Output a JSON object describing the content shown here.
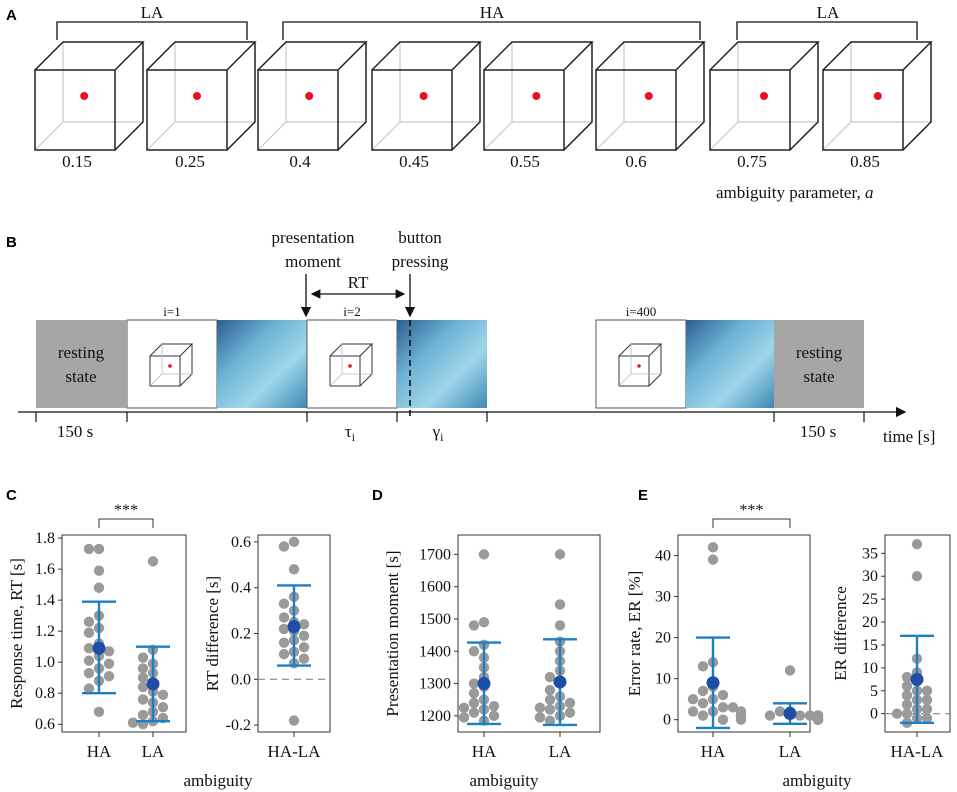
{
  "panels": {
    "A": "A",
    "B": "B",
    "C": "C",
    "D": "D",
    "E": "E"
  },
  "panel_a": {
    "groups": [
      {
        "label": "LA"
      },
      {
        "label": "HA"
      },
      {
        "label": "LA"
      }
    ],
    "cube_values": [
      "0.15",
      "0.25",
      "0.4",
      "0.45",
      "0.55",
      "0.6",
      "0.75",
      "0.85"
    ],
    "cube_a": [
      0.15,
      0.25,
      0.4,
      0.45,
      0.55,
      0.6,
      0.75,
      0.85
    ],
    "axis_label": "ambiguity parameter, ",
    "axis_symbol": "a"
  },
  "panel_b": {
    "presentation_moment": [
      "presentation",
      "moment"
    ],
    "button_pressing": [
      "button",
      "pressing"
    ],
    "rt": "RT",
    "trial_labels": [
      "i=1",
      "i=2",
      "i=400"
    ],
    "resting_state": [
      "resting",
      "state"
    ],
    "durations": [
      "150 s",
      "150 s"
    ],
    "tau": "τ",
    "gamma": "γ",
    "subscript": "i",
    "time_label": "time [s]"
  },
  "colors": {
    "dot": "#9a9a9a",
    "mean": "#1f4ea8",
    "err": "#1a7fc6",
    "red": "#e3141b",
    "resting": "#a6a6a6"
  },
  "chart_data": [
    {
      "id": "C1",
      "type": "scatter",
      "ylabel": "Response time, RT [s]",
      "categories": [
        "HA",
        "LA"
      ],
      "ylim": [
        0.55,
        1.82
      ],
      "ticks": [
        0.6,
        0.8,
        1.0,
        1.2,
        1.4,
        1.6,
        1.8
      ],
      "tick_labels": [
        "0.6",
        "0.8",
        "1.0",
        "1.2",
        "1.4",
        "1.6",
        "1.8"
      ],
      "series": [
        {
          "name": "HA",
          "values": [
            1.73,
            1.73,
            1.59,
            1.48,
            1.3,
            1.26,
            1.22,
            1.19,
            1.12,
            1.09,
            1.07,
            1.04,
            1.01,
            0.99,
            0.96,
            0.93,
            0.91,
            0.88,
            0.83,
            0.68
          ],
          "mean": 1.09,
          "err_low": 0.8,
          "err_high": 1.39
        },
        {
          "name": "LA",
          "values": [
            1.65,
            1.08,
            1.03,
            0.99,
            0.96,
            0.93,
            0.9,
            0.87,
            0.84,
            0.81,
            0.79,
            0.76,
            0.74,
            0.71,
            0.68,
            0.66,
            0.64,
            0.62,
            0.61,
            0.6
          ],
          "mean": 0.86,
          "err_low": 0.62,
          "err_high": 1.1
        }
      ],
      "significance": "***"
    },
    {
      "id": "C2",
      "type": "scatter",
      "ylabel": "RT difference [s]",
      "categories": [
        "HA-LA"
      ],
      "ylim": [
        -0.23,
        0.63
      ],
      "ticks": [
        -0.2,
        0.0,
        0.2,
        0.4,
        0.6
      ],
      "tick_labels": [
        "-0.2",
        "0.0",
        "0.2",
        "0.4",
        "0.6"
      ],
      "reference_line": 0,
      "series": [
        {
          "name": "HA-LA",
          "values": [
            0.6,
            0.58,
            0.48,
            0.36,
            0.33,
            0.3,
            0.27,
            0.25,
            0.24,
            0.22,
            0.21,
            0.19,
            0.17,
            0.16,
            0.14,
            0.12,
            0.11,
            0.09,
            0.07,
            -0.18
          ],
          "mean": 0.23,
          "err_low": 0.06,
          "err_high": 0.41
        }
      ]
    },
    {
      "id": "D",
      "type": "scatter",
      "ylabel": "Presentation moment [s]",
      "categories": [
        "HA",
        "LA"
      ],
      "ylim": [
        1150,
        1760
      ],
      "ticks": [
        1200,
        1300,
        1400,
        1500,
        1600,
        1700
      ],
      "tick_labels": [
        "1200",
        "1300",
        "1400",
        "1500",
        "1600",
        "1700"
      ],
      "series": [
        {
          "name": "HA",
          "values": [
            1700,
            1490,
            1480,
            1420,
            1400,
            1380,
            1350,
            1320,
            1300,
            1290,
            1270,
            1250,
            1240,
            1230,
            1225,
            1220,
            1210,
            1200,
            1195,
            1185
          ],
          "mean": 1300,
          "err_low": 1175,
          "err_high": 1427
        },
        {
          "name": "LA",
          "values": [
            1700,
            1545,
            1480,
            1430,
            1400,
            1370,
            1340,
            1320,
            1300,
            1280,
            1260,
            1250,
            1240,
            1230,
            1225,
            1220,
            1210,
            1200,
            1195,
            1185
          ],
          "mean": 1305,
          "err_low": 1172,
          "err_high": 1437
        }
      ],
      "xlabel": "ambiguity"
    },
    {
      "id": "E1",
      "type": "scatter",
      "ylabel": "Error rate, ER [%]",
      "categories": [
        "HA",
        "LA"
      ],
      "ylim": [
        -3,
        45
      ],
      "ticks": [
        0,
        10,
        20,
        30,
        40
      ],
      "tick_labels": [
        "0",
        "10",
        "20",
        "30",
        "40"
      ],
      "series": [
        {
          "name": "HA",
          "values": [
            42,
            39,
            14,
            13,
            8,
            7,
            6,
            5,
            5,
            4,
            3,
            3,
            2,
            2,
            2,
            1,
            1,
            1,
            0,
            0
          ],
          "mean": 9,
          "err_low": -2,
          "err_high": 20
        },
        {
          "name": "LA",
          "values": [
            12,
            2,
            2,
            1,
            1,
            1,
            1,
            1,
            1,
            1,
            0,
            0,
            0,
            0,
            0,
            0,
            0,
            0,
            0,
            0
          ],
          "mean": 1.5,
          "err_low": -1,
          "err_high": 4
        }
      ],
      "significance": "***"
    },
    {
      "id": "E2",
      "type": "scatter",
      "ylabel": "ER difference",
      "categories": [
        "HA-LA"
      ],
      "ylim": [
        -4,
        39
      ],
      "ticks": [
        0,
        5,
        10,
        15,
        20,
        25,
        30,
        35
      ],
      "tick_labels": [
        "0",
        "5",
        "10",
        "15",
        "20",
        "25",
        "30",
        "35"
      ],
      "reference_line": 0,
      "series": [
        {
          "name": "HA-LA",
          "values": [
            37,
            30,
            12,
            9,
            8,
            7,
            6,
            5,
            5,
            4,
            3,
            3,
            2,
            1,
            1,
            0,
            0,
            -1,
            -1,
            -2
          ],
          "mean": 7.5,
          "err_low": -2,
          "err_high": 17
        }
      ]
    }
  ],
  "shared_xlabel": "ambiguity"
}
